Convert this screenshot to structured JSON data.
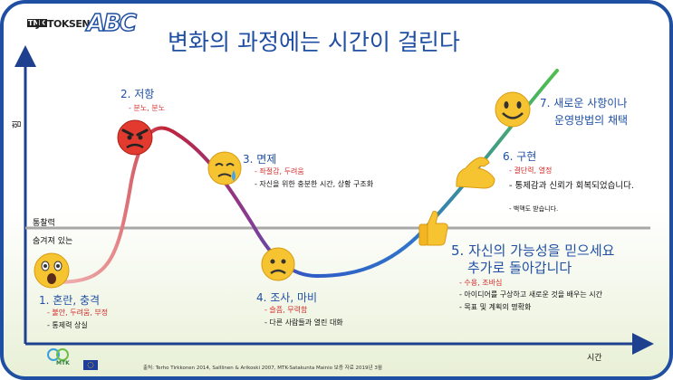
{
  "title": "변화의 과정에는 시간이 걸린다",
  "logo": {
    "prefix": "TMK",
    "brand": "JUTOKSEN",
    "abc": "ABC"
  },
  "axes": {
    "y_label": "힘",
    "x_label": "시간"
  },
  "reference_line": {
    "label": "통찰력"
  },
  "hidden_label": "숨겨져 있는",
  "stages": [
    {
      "title": "1. 혼란, 충격",
      "emotions": "- 불안, 두려움, 부정",
      "notes": [
        "- 통제력 상실"
      ],
      "face": "shocked-face-icon"
    },
    {
      "title": "2. 저항",
      "emotions": "- 분노, 분노",
      "notes": [],
      "face": "angry-face-icon"
    },
    {
      "title": "3. 면제",
      "emotions": "- 좌절감, 두려움",
      "notes": [
        "- 자신을 위한 충분한 시간, 상황 구조화"
      ],
      "face": "crying-face-icon"
    },
    {
      "title": "4. 조사, 마비",
      "emotions": "- 슬픔, 무력함",
      "notes": [
        "- 다른 사람들과 열린 대화"
      ],
      "face": "worried-face-icon"
    },
    {
      "title_line1": "5. 자신의 가능성을 믿으세요",
      "title_line2": "추가로 돌아갑니다",
      "emotions": "- 수용, 조바심",
      "notes": [
        "- 아이디어를 구상하고 새로운 것을 배우는 시간",
        "- 목표 및 계획의 명확화"
      ],
      "face": "thumbs-up-icon"
    },
    {
      "title": "6. 구현",
      "emotions": "- 결단력, 열정",
      "notes": [
        "- 통제감과 신뢰가 회복되었습니다.",
        "- 백맥도 받습니다."
      ],
      "face": "flexed-biceps-icon"
    },
    {
      "title_line1": "7. 새로운 사항이나",
      "title_line2": "운영방법의 채택",
      "emotions": "",
      "notes": [],
      "face": "smiling-face-icon"
    }
  ],
  "footer": {
    "source": "출처: Terho Tirkkonen 2014, Salllinen & Arikoski 2007, MTK-Satakunta Mainio 보증 자료 2019년 3월",
    "org": "MTK"
  },
  "colors": {
    "curve_start": "#f2b7b7",
    "curve_peak": "#c0243a",
    "curve_trough": "#2e5bc8",
    "curve_end": "#4fc24a",
    "axis": "#1f3f8f",
    "title": "#1f4fa3"
  }
}
